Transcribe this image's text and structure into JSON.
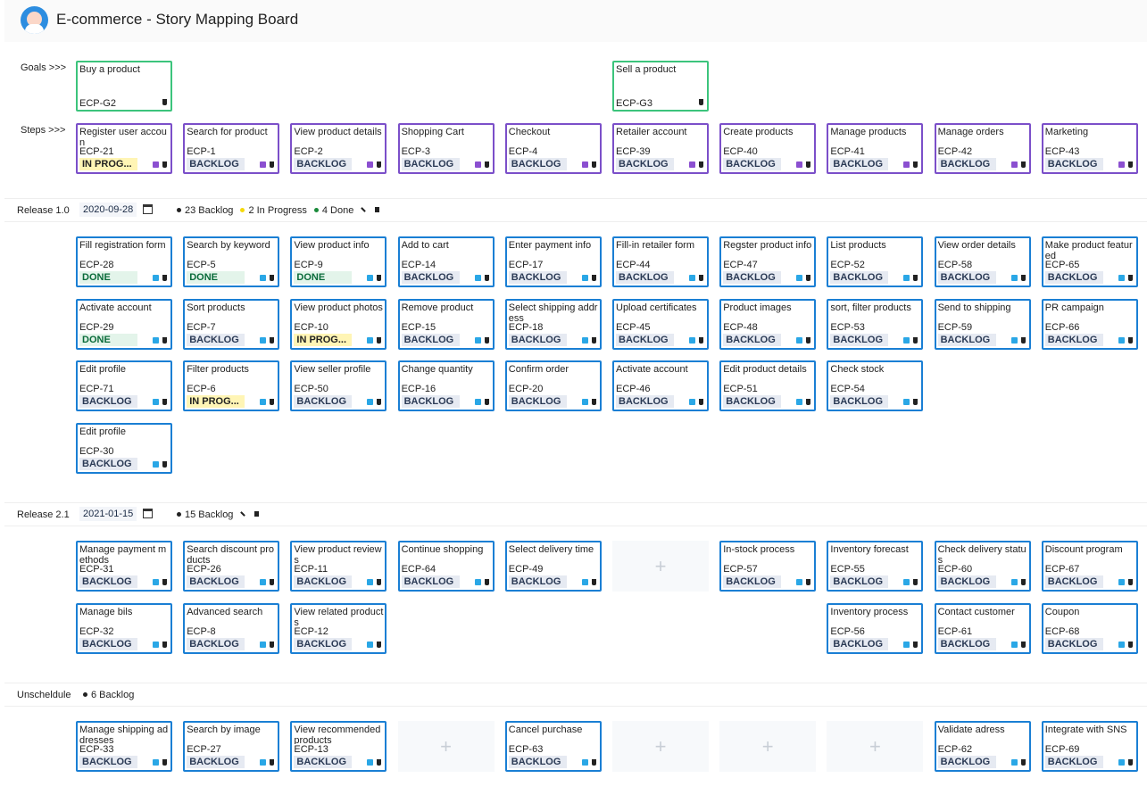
{
  "header": {
    "title": "E-commerce - Story Mapping Board"
  },
  "labels": {
    "goals": "Goals >>>",
    "steps": "Steps >>>"
  },
  "goals": [
    {
      "title": "Buy a product",
      "id": "ECP-G2",
      "steps": [
        {
          "title": "Register user accoun",
          "id": "ECP-21",
          "status": "IN PROG..."
        },
        {
          "title": "Search for product",
          "id": "ECP-1",
          "status": "BACKLOG"
        },
        {
          "title": "View product details",
          "id": "ECP-2",
          "status": "BACKLOG"
        },
        {
          "title": "Shopping Cart",
          "id": "ECP-3",
          "status": "BACKLOG"
        },
        {
          "title": "Checkout",
          "id": "ECP-4",
          "status": "BACKLOG"
        }
      ]
    },
    {
      "title": "Sell a product",
      "id": "ECP-G3",
      "steps": [
        {
          "title": "Retailer account",
          "id": "ECP-39",
          "status": "BACKLOG"
        },
        {
          "title": "Create products",
          "id": "ECP-40",
          "status": "BACKLOG"
        },
        {
          "title": "Manage products",
          "id": "ECP-41",
          "status": "BACKLOG"
        },
        {
          "title": "Manage orders",
          "id": "ECP-42",
          "status": "BACKLOG"
        },
        {
          "title": "Marketing",
          "id": "ECP-43",
          "status": "BACKLOG"
        }
      ]
    }
  ],
  "releases": [
    {
      "name": "Release 1.0",
      "date": "2020-09-28",
      "summary": [
        {
          "text": "23 Backlog",
          "color": "#222222"
        },
        {
          "text": "2 In Progress",
          "color": "#f5d90a"
        },
        {
          "text": "4 Done",
          "color": "#1a8a3a"
        }
      ],
      "columns": [
        [
          {
            "title": "Fill registration form",
            "id": "ECP-28",
            "status": "DONE"
          },
          {
            "title": "Activate account",
            "id": "ECP-29",
            "status": "DONE"
          },
          {
            "title": "Edit profile",
            "id": "ECP-71",
            "status": "BACKLOG"
          },
          {
            "title": "Edit profile",
            "id": "ECP-30",
            "status": "BACKLOG"
          }
        ],
        [
          {
            "title": "Search by keyword",
            "id": "ECP-5",
            "status": "DONE"
          },
          {
            "title": "Sort products",
            "id": "ECP-7",
            "status": "BACKLOG"
          },
          {
            "title": "Filter products",
            "id": "ECP-6",
            "status": "IN PROG..."
          }
        ],
        [
          {
            "title": "View product info",
            "id": "ECP-9",
            "status": "DONE"
          },
          {
            "title": "View product photos",
            "id": "ECP-10",
            "status": "IN PROG..."
          },
          {
            "title": "View seller profile",
            "id": "ECP-50",
            "status": "BACKLOG"
          }
        ],
        [
          {
            "title": "Add to cart",
            "id": "ECP-14",
            "status": "BACKLOG"
          },
          {
            "title": "Remove product",
            "id": "ECP-15",
            "status": "BACKLOG"
          },
          {
            "title": "Change quantity",
            "id": "ECP-16",
            "status": "BACKLOG"
          }
        ],
        [
          {
            "title": "Enter payment info",
            "id": "ECP-17",
            "status": "BACKLOG"
          },
          {
            "title": "Select shipping address",
            "id": "ECP-18",
            "status": "BACKLOG"
          },
          {
            "title": "Confirm order",
            "id": "ECP-20",
            "status": "BACKLOG"
          }
        ],
        [
          {
            "title": "Fill-in retailer form",
            "id": "ECP-44",
            "status": "BACKLOG"
          },
          {
            "title": "Upload certificates",
            "id": "ECP-45",
            "status": "BACKLOG"
          },
          {
            "title": "Activate account",
            "id": "ECP-46",
            "status": "BACKLOG"
          }
        ],
        [
          {
            "title": "Regster product info",
            "id": "ECP-47",
            "status": "BACKLOG"
          },
          {
            "title": "Product images",
            "id": "ECP-48",
            "status": "BACKLOG"
          },
          {
            "title": "Edit product details",
            "id": "ECP-51",
            "status": "BACKLOG"
          }
        ],
        [
          {
            "title": "List products",
            "id": "ECP-52",
            "status": "BACKLOG"
          },
          {
            "title": "sort, filter products",
            "id": "ECP-53",
            "status": "BACKLOG"
          },
          {
            "title": "Check stock",
            "id": "ECP-54",
            "status": "BACKLOG"
          }
        ],
        [
          {
            "title": "View order details",
            "id": "ECP-58",
            "status": "BACKLOG"
          },
          {
            "title": "Send to shipping",
            "id": "ECP-59",
            "status": "BACKLOG"
          }
        ],
        [
          {
            "title": "Make product featured",
            "id": "ECP-65",
            "status": "BACKLOG"
          },
          {
            "title": "PR campaign",
            "id": "ECP-66",
            "status": "BACKLOG"
          }
        ]
      ]
    },
    {
      "name": "Release 2.1",
      "date": "2021-01-15",
      "summary": [
        {
          "text": "15 Backlog",
          "color": "#222222"
        }
      ],
      "columns": [
        [
          {
            "title": "Manage payment methods",
            "id": "ECP-31",
            "status": "BACKLOG"
          },
          {
            "title": "Manage bils",
            "id": "ECP-32",
            "status": "BACKLOG"
          }
        ],
        [
          {
            "title": "Search discount products",
            "id": "ECP-26",
            "status": "BACKLOG"
          },
          {
            "title": "Advanced search",
            "id": "ECP-8",
            "status": "BACKLOG"
          }
        ],
        [
          {
            "title": "View product reviews",
            "id": "ECP-11",
            "status": "BACKLOG"
          },
          {
            "title": "View related products",
            "id": "ECP-12",
            "status": "BACKLOG"
          }
        ],
        [
          {
            "title": "Continue shopping",
            "id": "ECP-64",
            "status": "BACKLOG"
          }
        ],
        [
          {
            "title": "Select delivery time",
            "id": "ECP-49",
            "status": "BACKLOG"
          }
        ],
        [],
        [
          {
            "title": "In-stock process",
            "id": "ECP-57",
            "status": "BACKLOG"
          }
        ],
        [
          {
            "title": "Inventory forecast",
            "id": "ECP-55",
            "status": "BACKLOG"
          },
          {
            "title": "Inventory process",
            "id": "ECP-56",
            "status": "BACKLOG"
          }
        ],
        [
          {
            "title": "Check delivery status",
            "id": "ECP-60",
            "status": "BACKLOG"
          },
          {
            "title": "Contact customer",
            "id": "ECP-61",
            "status": "BACKLOG"
          }
        ],
        [
          {
            "title": "Discount program",
            "id": "ECP-67",
            "status": "BACKLOG"
          },
          {
            "title": "Coupon",
            "id": "ECP-68",
            "status": "BACKLOG"
          }
        ]
      ]
    },
    {
      "name": "Unscheldule",
      "summary": [
        {
          "text": "6 Backlog",
          "color": "#222222"
        }
      ],
      "columns": [
        [
          {
            "title": "Manage shipping addresses",
            "id": "ECP-33",
            "status": "BACKLOG"
          }
        ],
        [
          {
            "title": "Search by image",
            "id": "ECP-27",
            "status": "BACKLOG"
          }
        ],
        [
          {
            "title": "View recommended products",
            "id": "ECP-13",
            "status": "BACKLOG"
          }
        ],
        [],
        [
          {
            "title": "Cancel purchase",
            "id": "ECP-63",
            "status": "BACKLOG"
          }
        ],
        [],
        [],
        [],
        [
          {
            "title": "Validate adress",
            "id": "ECP-62",
            "status": "BACKLOG"
          }
        ],
        [
          {
            "title": "Integrate with SNS",
            "id": "ECP-69",
            "status": "BACKLOG"
          }
        ]
      ]
    }
  ]
}
